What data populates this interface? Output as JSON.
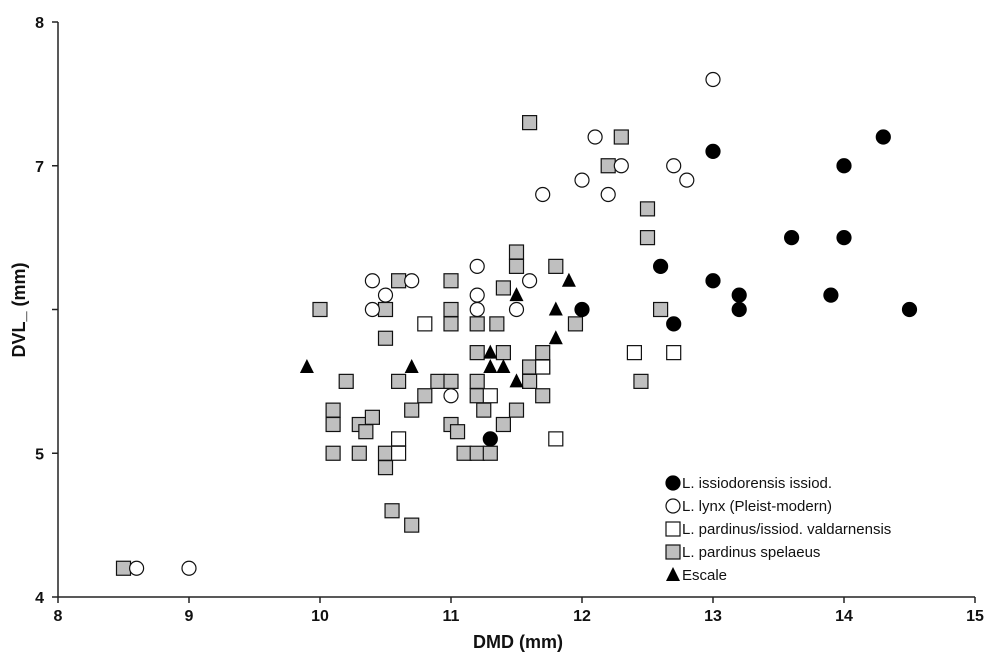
{
  "chart_data": {
    "type": "scatter",
    "title": "",
    "xlabel": "DMD (mm)",
    "ylabel": "DVL_ (mm)",
    "xlim": [
      8,
      15
    ],
    "ylim": [
      4,
      8
    ],
    "xticks": [
      "8",
      "9",
      "10",
      "11",
      "12",
      "13",
      "14",
      "15"
    ],
    "yticks": [
      "4",
      "5",
      "7",
      "8"
    ],
    "grid": false,
    "legend_position": "bottom-right",
    "series": [
      {
        "name": "L. issiodorensis issiod.",
        "marker": "filled-circle",
        "color": "#000000",
        "points": [
          [
            11.3,
            5.1
          ],
          [
            12.0,
            6.0
          ],
          [
            12.6,
            6.3
          ],
          [
            12.7,
            5.9
          ],
          [
            13.0,
            7.1
          ],
          [
            13.0,
            6.2
          ],
          [
            13.2,
            6.1
          ],
          [
            13.2,
            6.0
          ],
          [
            13.6,
            6.5
          ],
          [
            13.9,
            6.1
          ],
          [
            14.0,
            7.0
          ],
          [
            14.0,
            6.5
          ],
          [
            14.3,
            7.2
          ],
          [
            14.5,
            6.0
          ]
        ]
      },
      {
        "name": "L. lynx (Pleist-modern)",
        "marker": "open-circle",
        "color": "#ffffff",
        "points": [
          [
            8.6,
            4.2
          ],
          [
            9.0,
            4.2
          ],
          [
            10.4,
            6.2
          ],
          [
            10.4,
            6.0
          ],
          [
            10.5,
            6.1
          ],
          [
            10.7,
            6.2
          ],
          [
            11.0,
            5.4
          ],
          [
            11.2,
            6.3
          ],
          [
            11.2,
            6.1
          ],
          [
            11.2,
            6.0
          ],
          [
            11.5,
            6.0
          ],
          [
            11.6,
            6.2
          ],
          [
            11.7,
            6.8
          ],
          [
            12.0,
            6.9
          ],
          [
            12.1,
            7.2
          ],
          [
            12.2,
            6.8
          ],
          [
            12.3,
            7.0
          ],
          [
            12.7,
            7.0
          ],
          [
            12.8,
            6.9
          ],
          [
            13.0,
            7.6
          ]
        ]
      },
      {
        "name": "L. pardinus/issiod. valdarnensis",
        "marker": "open-square",
        "color": "#ffffff",
        "points": [
          [
            10.6,
            5.1
          ],
          [
            10.6,
            5.0
          ],
          [
            10.8,
            5.9
          ],
          [
            11.3,
            5.4
          ],
          [
            11.7,
            5.6
          ],
          [
            11.8,
            5.1
          ],
          [
            12.4,
            5.7
          ],
          [
            12.7,
            5.7
          ]
        ]
      },
      {
        "name": "L. pardinus spelaeus",
        "marker": "gray-square",
        "color": "#bfbfbf",
        "points": [
          [
            8.5,
            4.2
          ],
          [
            10.0,
            6.0
          ],
          [
            10.1,
            5.3
          ],
          [
            10.1,
            5.2
          ],
          [
            10.1,
            5.0
          ],
          [
            10.2,
            5.5
          ],
          [
            10.3,
            5.2
          ],
          [
            10.3,
            5.0
          ],
          [
            10.35,
            5.15
          ],
          [
            10.4,
            5.25
          ],
          [
            10.5,
            6.0
          ],
          [
            10.5,
            5.8
          ],
          [
            10.5,
            5.0
          ],
          [
            10.5,
            4.9
          ],
          [
            10.55,
            4.6
          ],
          [
            10.6,
            5.5
          ],
          [
            10.6,
            6.2
          ],
          [
            10.7,
            5.3
          ],
          [
            10.7,
            4.5
          ],
          [
            10.8,
            5.4
          ],
          [
            10.9,
            5.5
          ],
          [
            11.0,
            6.2
          ],
          [
            11.0,
            6.0
          ],
          [
            11.0,
            5.9
          ],
          [
            11.0,
            5.5
          ],
          [
            11.0,
            5.2
          ],
          [
            11.05,
            5.15
          ],
          [
            11.1,
            5.0
          ],
          [
            11.2,
            5.9
          ],
          [
            11.2,
            5.7
          ],
          [
            11.2,
            5.5
          ],
          [
            11.2,
            5.4
          ],
          [
            11.2,
            5.0
          ],
          [
            11.25,
            5.3
          ],
          [
            11.3,
            5.0
          ],
          [
            11.35,
            5.9
          ],
          [
            11.4,
            6.15
          ],
          [
            11.4,
            5.7
          ],
          [
            11.4,
            5.2
          ],
          [
            11.5,
            6.4
          ],
          [
            11.5,
            6.3
          ],
          [
            11.5,
            5.3
          ],
          [
            11.6,
            7.3
          ],
          [
            11.6,
            5.6
          ],
          [
            11.6,
            5.5
          ],
          [
            11.7,
            5.7
          ],
          [
            11.7,
            5.6
          ],
          [
            11.7,
            5.4
          ],
          [
            11.8,
            6.3
          ],
          [
            11.95,
            5.9
          ],
          [
            12.2,
            7.0
          ],
          [
            12.3,
            7.2
          ],
          [
            12.45,
            5.5
          ],
          [
            12.5,
            6.7
          ],
          [
            12.5,
            6.5
          ],
          [
            12.6,
            6.0
          ]
        ]
      },
      {
        "name": "Escale",
        "marker": "filled-triangle",
        "color": "#000000",
        "points": [
          [
            9.9,
            5.6
          ],
          [
            10.7,
            5.6
          ],
          [
            11.3,
            5.7
          ],
          [
            11.3,
            5.6
          ],
          [
            11.4,
            5.6
          ],
          [
            11.5,
            5.5
          ],
          [
            11.5,
            6.1
          ],
          [
            11.8,
            6.0
          ],
          [
            11.8,
            5.8
          ],
          [
            11.9,
            6.2
          ]
        ]
      }
    ]
  }
}
